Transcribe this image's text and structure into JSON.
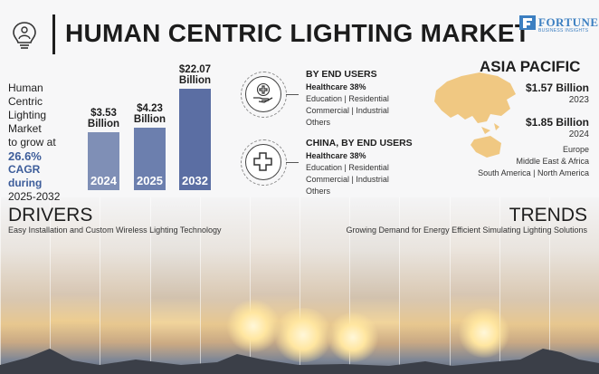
{
  "header": {
    "title": "HUMAN CENTRIC LIGHTING MARKET"
  },
  "brand": {
    "name": "FORTUNE",
    "subtitle": "BUSINESS INSIGHTS"
  },
  "intro": {
    "line1": "Human",
    "line2": "Centric",
    "line3": "Lighting",
    "line4": "Market",
    "line5": "to grow at",
    "cagr_value": "26.6%",
    "cagr_line": "CAGR during",
    "period": "2025-2032"
  },
  "chart_data": {
    "type": "bar",
    "categories": [
      "2024",
      "2025",
      "2032"
    ],
    "values": [
      3.53,
      4.23,
      22.07
    ],
    "value_labels": [
      "$3.53",
      "$4.23",
      "$22.07"
    ],
    "unit_label": "Billion",
    "title": "",
    "xlabel": "",
    "ylabel": ""
  },
  "segments": [
    {
      "title": "BY END USERS",
      "highlight": "Healthcare 38%",
      "line1": "Education  |  Residential",
      "line2": "Commercial  |  Industrial",
      "line3": "Others",
      "icon": "hand-health-icon"
    },
    {
      "title": "CHINA, BY END USERS",
      "highlight": "Healthcare 38%",
      "line1": "Education  |  Residential",
      "line2": "Commercial  |  Industrial",
      "line3": "Others",
      "icon": "medical-cross-icon"
    }
  ],
  "region": {
    "title": "ASIA PACIFIC",
    "value1": "$1.57 Billion",
    "year1": "2023",
    "value2": "$1.85 Billion",
    "year2": "2024",
    "others1": "Europe",
    "others2": "Middle East & Africa",
    "others3": "South America  |  North America",
    "map_color": "#f0c882"
  },
  "drivers": {
    "heading": "DRIVERS",
    "text": "Easy Installation and Custom Wireless Lighting Technology"
  },
  "trends": {
    "heading": "TRENDS",
    "text": "Growing Demand for Energy Efficient Simulating Lighting Solutions"
  },
  "colors": {
    "bar1": "#7f8fb6",
    "bar2": "#6c7fae",
    "bar3": "#5b6ea3",
    "accent": "#3d5d9a",
    "brand": "#3c7fc1"
  }
}
